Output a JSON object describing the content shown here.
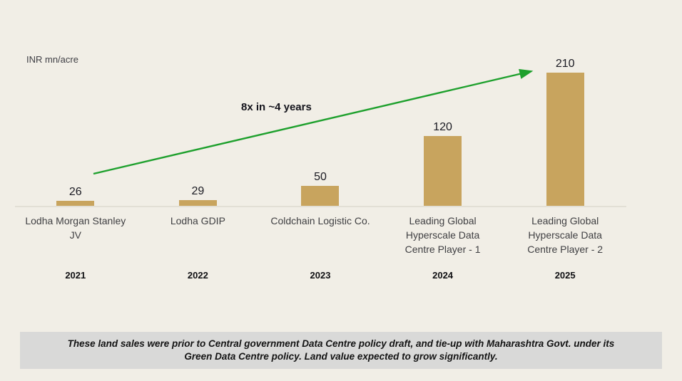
{
  "theme": {
    "background": "#F1EEE6",
    "bar_color": "#C8A45E",
    "arrow_color": "#1EA02D",
    "note_background": "#D9D9D8",
    "axis_line_color": "#E2DFD5",
    "text_dark": "#1A1A22",
    "text_muted": "#3E3E44"
  },
  "chart_data": {
    "type": "bar",
    "title": "",
    "ylabel": "INR mn/acre",
    "unit_label": "INR mn/acre",
    "categories": [
      "Lodha Morgan Stanley JV",
      "Lodha GDIP",
      "Coldchain Logistic Co.",
      "Leading Global Hyperscale Data Centre Player - 1",
      "Leading Global Hyperscale Data Centre Player - 2"
    ],
    "x_tick_years": [
      "2021",
      "2022",
      "2023",
      "2024",
      "2025"
    ],
    "values": [
      26,
      29,
      50,
      120,
      210
    ],
    "annotation": "8x in ~4 years",
    "legend_position": "none",
    "grid": false
  },
  "footer_note": {
    "line1": "These land sales were prior to Central government Data Centre policy draft, and tie-up with Maharashtra Govt. under its",
    "line2": "Green Data Centre policy. Land value expected to grow significantly."
  }
}
